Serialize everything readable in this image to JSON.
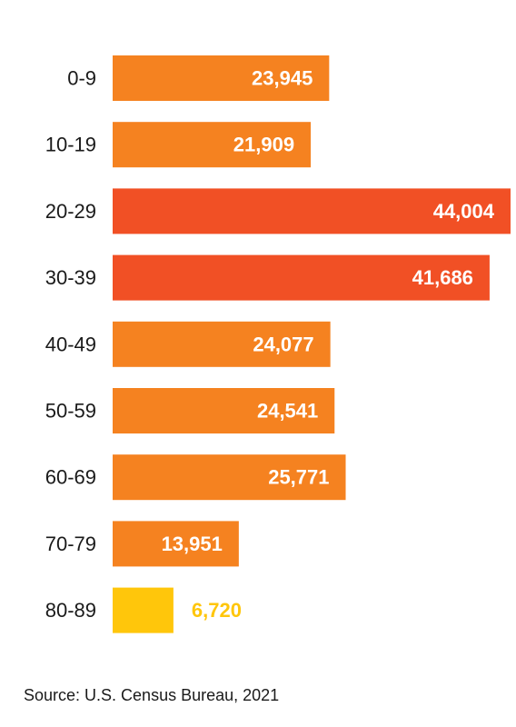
{
  "chart_data": {
    "type": "bar",
    "orientation": "horizontal",
    "categories": [
      "0-9",
      "10-19",
      "20-29",
      "30-39",
      "40-49",
      "50-59",
      "60-69",
      "70-79",
      "80-89"
    ],
    "values": [
      23945,
      21909,
      44004,
      41686,
      24077,
      24541,
      25771,
      13951,
      6720
    ],
    "value_labels": [
      "23,945",
      "21,909",
      "44,004",
      "41,686",
      "24,077",
      "24,541",
      "25,771",
      "13,951",
      "6,720"
    ],
    "bar_colors": [
      "#f58220",
      "#f58220",
      "#f15025",
      "#f15025",
      "#f58220",
      "#f58220",
      "#f58220",
      "#f58220",
      "#ffc60b"
    ],
    "label_colors": [
      "#ffffff",
      "#ffffff",
      "#ffffff",
      "#ffffff",
      "#ffffff",
      "#ffffff",
      "#ffffff",
      "#ffffff",
      "#ffc60b"
    ],
    "label_inside": [
      true,
      true,
      true,
      true,
      true,
      true,
      true,
      true,
      false
    ],
    "xlim": [
      0,
      44004
    ],
    "grid": false,
    "legend": "none"
  },
  "source": "Source: U.S. Census Bureau, 2021"
}
